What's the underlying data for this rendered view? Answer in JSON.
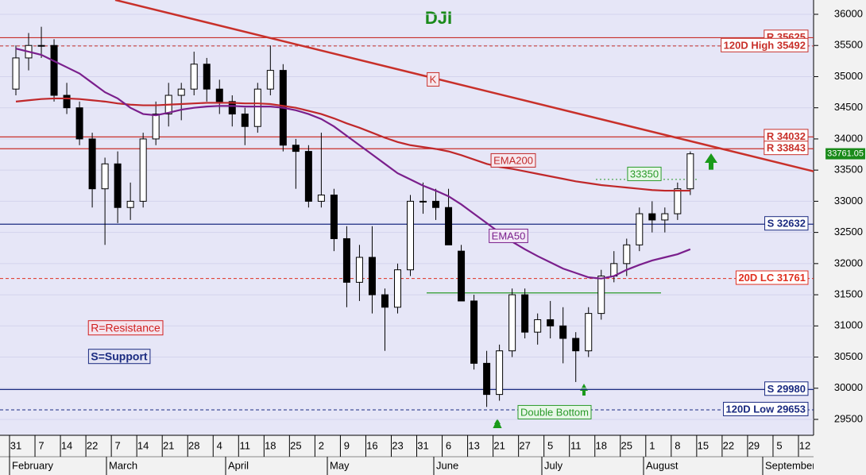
{
  "chart_data": {
    "type": "candlestick",
    "title": "DJI",
    "categories": [
      "31",
      null,
      "7",
      null,
      "14",
      null,
      "22",
      null,
      "7",
      null,
      "14",
      null,
      "21",
      null,
      "28",
      null,
      "4",
      null,
      "11",
      null,
      "18",
      null,
      "25",
      null,
      "2",
      null,
      "9",
      null,
      "16",
      null,
      "23",
      null,
      "31",
      null,
      "6",
      null,
      "13",
      null,
      "21",
      null,
      "27",
      null,
      "5",
      null,
      "11",
      null,
      "18",
      null,
      "25",
      null,
      "1",
      null,
      "8",
      null,
      "15",
      null,
      "22",
      null,
      "29",
      null,
      "5",
      null,
      "12"
    ],
    "months": [
      "February",
      "March",
      "April",
      "May",
      "June",
      "July",
      "August",
      "September"
    ],
    "open": [
      34800,
      35300,
      35500,
      35500,
      34700,
      34500,
      34000,
      33200,
      33600,
      32900,
      33000,
      34000,
      34400,
      34700,
      34800,
      35200,
      34800,
      34600,
      34400,
      34200,
      34800,
      35100,
      33900,
      33800,
      33000,
      33100,
      32400,
      31700,
      32100,
      31500,
      31300,
      31900,
      33000,
      33000,
      32900,
      32200,
      31400,
      30400,
      29900,
      30600,
      31500,
      30900,
      31100,
      31000,
      30800,
      30600,
      31200,
      31800,
      32000,
      32300,
      32800,
      32700,
      32800,
      33200,
      null,
      null,
      null,
      null,
      null,
      null,
      null,
      null,
      null
    ],
    "high": [
      35500,
      35700,
      35800,
      35600,
      34900,
      34600,
      34100,
      33700,
      33800,
      33300,
      34100,
      34600,
      34900,
      34900,
      35400,
      35300,
      34950,
      34700,
      34500,
      34900,
      35500,
      35200,
      34000,
      33900,
      34100,
      33200,
      32600,
      32300,
      32600,
      31600,
      32000,
      33100,
      33300,
      33200,
      33200,
      32300,
      31500,
      30600,
      30700,
      31600,
      31600,
      31200,
      31400,
      31300,
      30900,
      31300,
      31900,
      32200,
      32400,
      32900,
      33000,
      32900,
      33300,
      33800,
      null,
      null,
      null,
      null,
      null,
      null,
      null,
      null,
      null
    ],
    "low": [
      34700,
      35100,
      35300,
      34600,
      34400,
      33900,
      32900,
      32300,
      32650,
      32700,
      32900,
      33900,
      34200,
      34300,
      34700,
      34600,
      34400,
      34200,
      33900,
      34100,
      34700,
      33800,
      33200,
      32900,
      32900,
      32200,
      31300,
      31400,
      31200,
      30600,
      31200,
      31800,
      32800,
      32700,
      32300,
      31400,
      30300,
      29700,
      29800,
      30500,
      30800,
      30700,
      30800,
      30400,
      30100,
      30500,
      31100,
      31700,
      31800,
      32200,
      32500,
      32500,
      32700,
      33100,
      null,
      null,
      null,
      null,
      null,
      null,
      null,
      null,
      null
    ],
    "close": [
      35300,
      35500,
      35500,
      34700,
      34500,
      34000,
      33200,
      33600,
      32900,
      33000,
      34000,
      34400,
      34700,
      34800,
      35200,
      34800,
      34600,
      34400,
      34200,
      34800,
      35100,
      33900,
      33800,
      33000,
      33100,
      32400,
      31700,
      32100,
      31500,
      31300,
      31900,
      33000,
      33000,
      32900,
      32300,
      31400,
      30400,
      29900,
      30600,
      31500,
      30900,
      31100,
      31000,
      30800,
      30600,
      31200,
      31800,
      32000,
      32300,
      32800,
      32700,
      32800,
      33200,
      33761.05,
      null,
      null,
      null,
      null,
      null,
      null,
      null,
      null,
      null
    ],
    "up_color": "#ffffff",
    "down_color": "#000000",
    "series": [
      {
        "name": "EMA200",
        "color": "#c0282a",
        "values": [
          34600,
          34620,
          34640,
          34650,
          34650,
          34640,
          34620,
          34600,
          34570,
          34550,
          34540,
          34540,
          34550,
          34560,
          34570,
          34580,
          34580,
          34580,
          34570,
          34570,
          34560,
          34530,
          34500,
          34450,
          34400,
          34330,
          34250,
          34180,
          34100,
          34020,
          33950,
          33900,
          33870,
          33840,
          33800,
          33740,
          33670,
          33600,
          33550,
          33520,
          33480,
          33440,
          33400,
          33360,
          33320,
          33290,
          33260,
          33240,
          33220,
          33200,
          33180,
          33170,
          33170,
          33170,
          null,
          null,
          null,
          null,
          null,
          null,
          null,
          null,
          null
        ]
      },
      {
        "name": "EMA50",
        "color": "#7a1f8c",
        "values": [
          35450,
          35400,
          35350,
          35250,
          35150,
          35050,
          34900,
          34750,
          34650,
          34500,
          34400,
          34380,
          34420,
          34470,
          34500,
          34520,
          34530,
          34530,
          34520,
          34520,
          34520,
          34500,
          34460,
          34400,
          34320,
          34200,
          34050,
          33900,
          33750,
          33600,
          33450,
          33350,
          33250,
          33170,
          33080,
          32950,
          32800,
          32650,
          32500,
          32350,
          32230,
          32120,
          32020,
          31920,
          31850,
          31780,
          31760,
          31800,
          31900,
          31980,
          32050,
          32100,
          32150,
          32230,
          null,
          null,
          null,
          null,
          null,
          null,
          null,
          null,
          null
        ]
      }
    ],
    "trend_line": {
      "label": "K",
      "color": "#c8302a",
      "values": [
        36230,
        33480
      ]
    },
    "levels": [
      {
        "label": "R 35625",
        "value": 35625,
        "color": "#c8302a",
        "dashed": false
      },
      {
        "label": "120D High 35492",
        "value": 35492,
        "color": "#c8302a",
        "dashed": true
      },
      {
        "label": "R 34032",
        "value": 34032,
        "color": "#c8302a",
        "dashed": false
      },
      {
        "label": "R 33843",
        "value": 33843,
        "color": "#c8302a",
        "dashed": false
      },
      {
        "label": "S 32632",
        "value": 32632,
        "color": "#1a2a80",
        "dashed": false
      },
      {
        "label": "20D LC 31761",
        "value": 31761,
        "color": "#e03020",
        "dashed": true
      },
      {
        "label": "S 29980",
        "value": 29980,
        "color": "#1a2a80",
        "dashed": false
      },
      {
        "label": "120D Low 29653",
        "value": 29653,
        "color": "#1a2a80",
        "dashed": true
      }
    ],
    "target": {
      "label": "33350",
      "value": 33350,
      "color": "#2a9a2a"
    },
    "annotations": [
      "Double Bottom",
      "R=Resistance",
      "S=Support"
    ],
    "ylim": [
      29500,
      36000
    ],
    "yticks": [
      29500,
      30000,
      30500,
      31000,
      31500,
      32000,
      32500,
      33000,
      33500,
      34000,
      34500,
      35000,
      35500,
      36000
    ],
    "grid": true
  }
}
